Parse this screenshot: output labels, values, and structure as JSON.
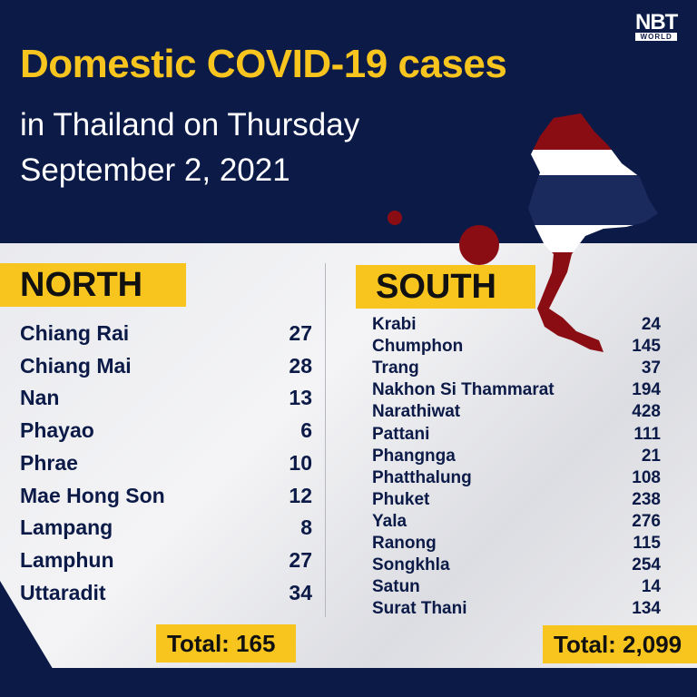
{
  "header": {
    "title": "Domestic COVID-19 cases",
    "subtitle_line1": "in Thailand on Thursday",
    "subtitle_line2": "September 2, 2021"
  },
  "logo": {
    "main": "NBT",
    "sub": "WORLD"
  },
  "colors": {
    "navy": "#0c1a48",
    "yellow": "#f7c51e",
    "flag_red": "#8b0d14",
    "flag_blue": "#1b2a5c"
  },
  "north": {
    "label": "NORTH",
    "items": [
      {
        "name": "Chiang Rai",
        "value": "27"
      },
      {
        "name": "Chiang Mai",
        "value": "28"
      },
      {
        "name": "Nan",
        "value": "13"
      },
      {
        "name": "Phayao",
        "value": "6"
      },
      {
        "name": "Phrae",
        "value": "10"
      },
      {
        "name": "Mae Hong Son",
        "value": "12"
      },
      {
        "name": "Lampang",
        "value": "8"
      },
      {
        "name": "Lamphun",
        "value": "27"
      },
      {
        "name": "Uttaradit",
        "value": "34"
      }
    ],
    "total": "Total: 165"
  },
  "south": {
    "label": "SOUTH",
    "items": [
      {
        "name": "Krabi",
        "value": "24"
      },
      {
        "name": "Chumphon",
        "value": "145"
      },
      {
        "name": "Trang",
        "value": "37"
      },
      {
        "name": "Nakhon Si Thammarat",
        "value": "194"
      },
      {
        "name": "Narathiwat",
        "value": "428"
      },
      {
        "name": "Pattani",
        "value": "111"
      },
      {
        "name": "Phangnga",
        "value": "21"
      },
      {
        "name": "Phatthalung",
        "value": "108"
      },
      {
        "name": "Phuket",
        "value": "238"
      },
      {
        "name": "Yala",
        "value": "276"
      },
      {
        "name": "Ranong",
        "value": "115"
      },
      {
        "name": "Songkhla",
        "value": "254"
      },
      {
        "name": "Satun",
        "value": "14"
      },
      {
        "name": "Surat Thani",
        "value": "134"
      }
    ],
    "total": "Total: 2,099"
  }
}
